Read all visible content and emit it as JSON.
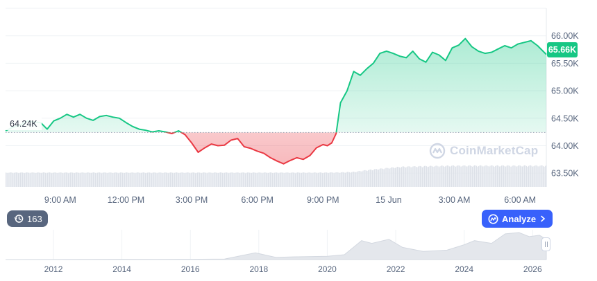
{
  "chart_data": {
    "type": "area",
    "y_ticks": [
      "66.00K",
      "65.50K",
      "65.00K",
      "64.50K",
      "64.00K",
      "63.50K"
    ],
    "ylim": [
      63.25,
      66.5
    ],
    "x_labels": [
      "9:00 AM",
      "12:00 PM",
      "3:00 PM",
      "6:00 PM",
      "9:00 PM",
      "15 Jun",
      "3:00 AM",
      "6:00 AM"
    ],
    "x_label_hours": [
      9,
      12,
      15,
      18,
      21,
      24,
      27,
      30
    ],
    "x_range_hours": [
      6.5,
      31.2
    ],
    "baseline": 64.24,
    "baseline_label": "64.24K",
    "current_price_label": "65.66K",
    "series": [
      {
        "x": [
          6.5,
          6.8,
          7.2,
          7.5,
          7.8,
          8.1,
          8.4,
          8.7,
          9.0,
          9.3,
          9.6,
          9.9,
          10.2,
          10.5,
          10.8,
          11.1,
          11.4,
          11.7,
          12.0,
          12.3,
          12.6,
          12.9,
          13.2,
          13.5,
          13.8,
          14.1,
          14.4,
          14.7,
          15.0,
          15.3,
          15.6,
          15.9,
          16.2,
          16.5,
          16.8,
          17.1,
          17.4,
          17.7,
          18.0,
          18.3,
          18.6,
          18.9,
          19.2,
          19.5,
          19.8,
          20.1,
          20.4,
          20.7,
          21.0,
          21.2,
          21.4,
          21.6,
          21.8,
          22.1,
          22.4,
          22.7,
          23.0,
          23.3,
          23.6,
          23.9,
          24.2,
          24.5,
          24.8,
          25.1,
          25.4,
          25.7,
          26.0,
          26.3,
          26.6,
          26.9,
          27.2,
          27.5,
          27.8,
          28.1,
          28.4,
          28.7,
          29.0,
          29.3,
          29.6,
          29.9,
          30.2,
          30.5,
          30.8,
          31.2
        ],
        "y": [
          64.27,
          64.33,
          64.38,
          64.45,
          64.43,
          64.42,
          64.3,
          64.45,
          64.5,
          64.57,
          64.52,
          64.57,
          64.5,
          64.46,
          64.53,
          64.55,
          64.52,
          64.5,
          64.42,
          64.35,
          64.3,
          64.28,
          64.25,
          64.27,
          64.25,
          64.22,
          64.27,
          64.2,
          64.05,
          63.88,
          63.96,
          64.03,
          64.0,
          64.01,
          64.1,
          64.13,
          63.98,
          63.95,
          63.9,
          63.86,
          63.78,
          63.72,
          63.67,
          63.73,
          63.78,
          63.75,
          63.82,
          63.96,
          64.02,
          64.0,
          64.05,
          64.22,
          64.78,
          65.0,
          65.35,
          65.28,
          65.4,
          65.5,
          65.68,
          65.72,
          65.68,
          65.63,
          65.6,
          65.72,
          65.58,
          65.52,
          65.7,
          65.65,
          65.55,
          65.78,
          65.83,
          65.95,
          65.8,
          65.72,
          65.68,
          65.7,
          65.76,
          65.82,
          65.78,
          65.85,
          65.88,
          65.91,
          65.82,
          65.66
        ]
      }
    ],
    "volume_level": [
      0.55,
      0.55,
      0.55,
      0.55,
      0.55,
      0.55,
      0.55,
      0.56,
      0.58,
      0.65,
      0.72,
      0.78,
      0.8,
      0.82,
      0.82,
      0.82
    ],
    "volume_x": [
      6.5,
      9.0,
      12.0,
      15.0,
      18.0,
      20.0,
      21.0,
      21.8,
      22.4,
      23.0,
      23.8,
      24.6,
      25.6,
      27.0,
      29.0,
      31.2
    ],
    "navigator": {
      "x_labels": [
        "2012",
        "2014",
        "2016",
        "2018",
        "2020",
        "2022",
        "2024",
        "2026"
      ],
      "x_years": [
        2012,
        2014,
        2016,
        2018,
        2020,
        2022,
        2024,
        2026
      ],
      "x_range": [
        2010.6,
        2026.4
      ],
      "years": [
        2010.6,
        2013,
        2014,
        2015,
        2016,
        2017,
        2017.9,
        2018.5,
        2019,
        2020,
        2020.5,
        2021.0,
        2021.3,
        2021.8,
        2022.2,
        2022.8,
        2023.5,
        2024.0,
        2024.3,
        2024.8,
        2025.2,
        2025.6,
        2025.9,
        2026.2,
        2026.4
      ],
      "level": [
        0.0,
        0.005,
        0.01,
        0.005,
        0.01,
        0.02,
        0.25,
        0.08,
        0.1,
        0.12,
        0.18,
        0.7,
        0.6,
        0.75,
        0.45,
        0.3,
        0.35,
        0.55,
        0.7,
        0.6,
        0.95,
        1.0,
        0.85,
        0.9,
        0.75
      ]
    }
  },
  "badges": {
    "history_count": "163",
    "analyze_label": "Analyze"
  },
  "watermark_text": "CoinMarketCap",
  "colors": {
    "up": "#16c784",
    "down": "#ea3943",
    "grid": "#eff2f5",
    "axis_text": "#58667e",
    "analyze_bg": "#3861fb",
    "badge_bg": "#58667e"
  }
}
